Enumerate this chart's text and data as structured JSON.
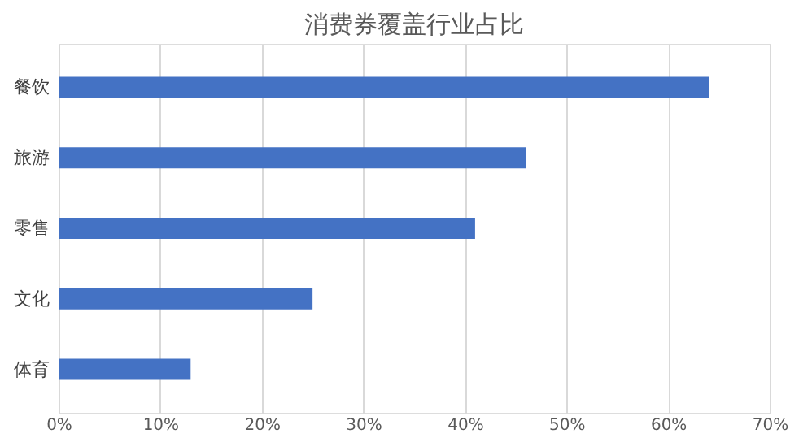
{
  "chart_data": {
    "type": "bar",
    "orientation": "horizontal",
    "title": "消费券覆盖行业占比",
    "categories": [
      "餐饮",
      "旅游",
      "零售",
      "文化",
      "体育"
    ],
    "values": [
      64,
      46,
      41,
      25,
      13
    ],
    "color": "#4472c4",
    "xlim": [
      0,
      70
    ],
    "xticks": [
      {
        "value": 0,
        "label": "0%"
      },
      {
        "value": 10,
        "label": "10%"
      },
      {
        "value": 20,
        "label": "20%"
      },
      {
        "value": 30,
        "label": "30%"
      },
      {
        "value": 40,
        "label": "40%"
      },
      {
        "value": 50,
        "label": "50%"
      },
      {
        "value": 60,
        "label": "60%"
      },
      {
        "value": 70,
        "label": "70%"
      }
    ],
    "grid": "x"
  }
}
